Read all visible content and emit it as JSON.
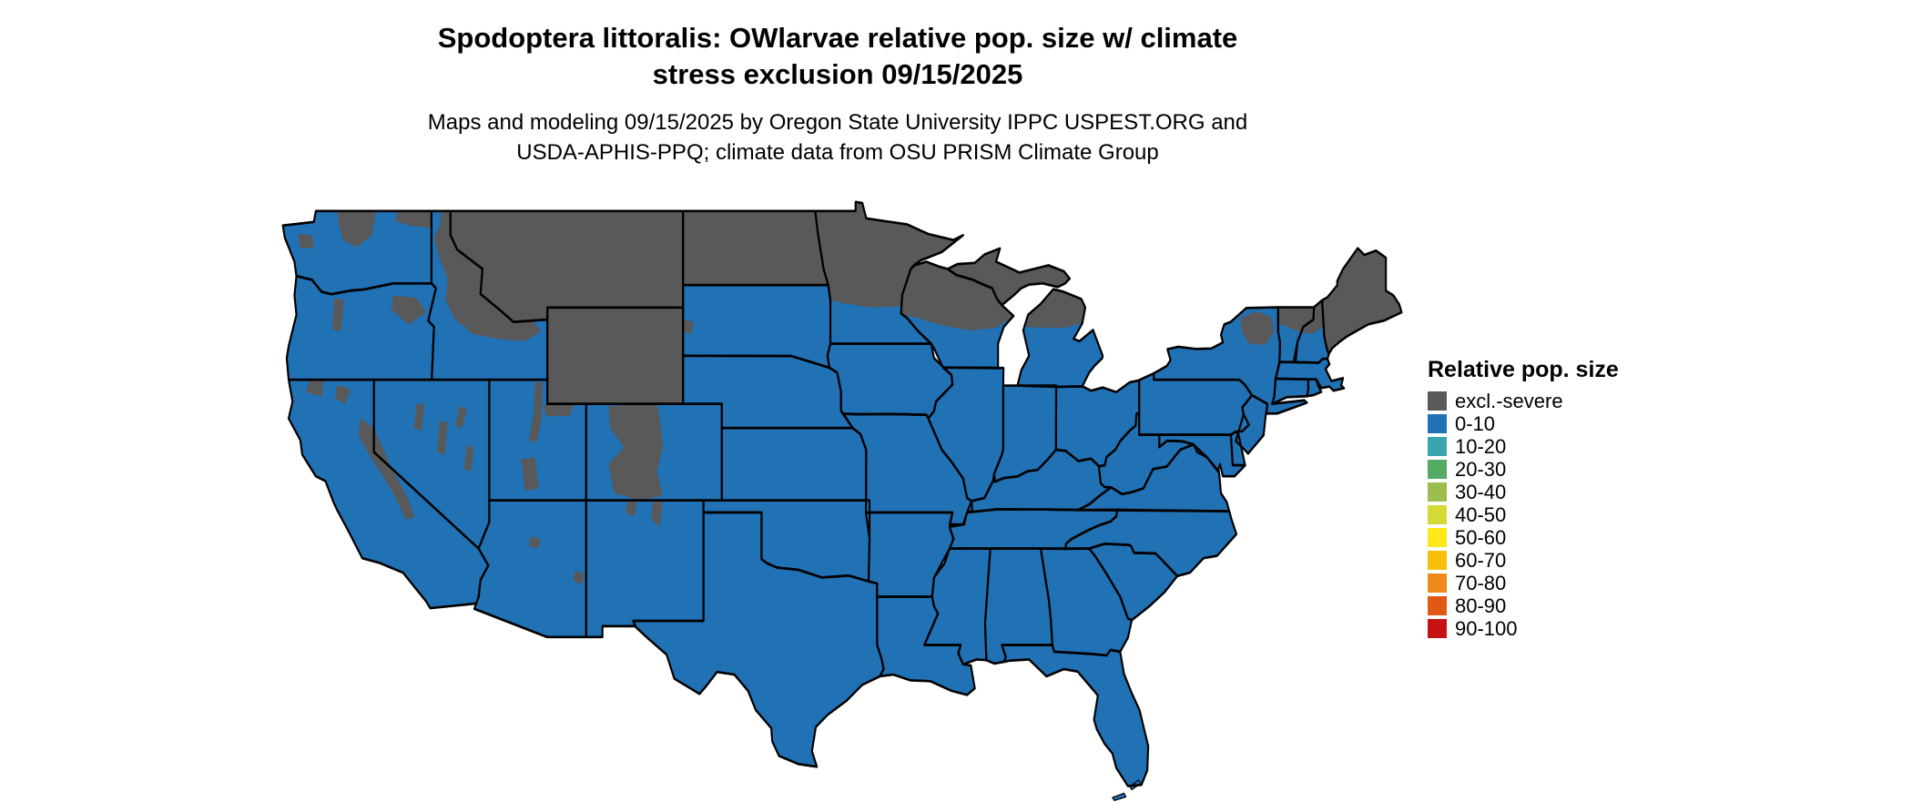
{
  "title": {
    "line1": "Spodoptera littoralis: OWlarvae relative pop. size w/ climate",
    "line2": "stress exclusion 09/15/2025"
  },
  "subtitle": {
    "line1": "Maps and modeling 09/15/2025 by Oregon State University IPPC USPEST.ORG and",
    "line2": "USDA-APHIS-PPQ; climate data from OSU PRISM Climate Group"
  },
  "legend": {
    "title": "Relative pop. size",
    "items": [
      {
        "label": "excl.-severe",
        "color": "#595959"
      },
      {
        "label": "0-10",
        "color": "#2171B5"
      },
      {
        "label": "10-20",
        "color": "#39A3AE"
      },
      {
        "label": "20-30",
        "color": "#55AB63"
      },
      {
        "label": "30-40",
        "color": "#9CBE4E"
      },
      {
        "label": "40-50",
        "color": "#D4DB34"
      },
      {
        "label": "50-60",
        "color": "#FFE81A"
      },
      {
        "label": "60-70",
        "color": "#F7BF0A"
      },
      {
        "label": "70-80",
        "color": "#F08A1D"
      },
      {
        "label": "80-90",
        "color": "#E05A15"
      },
      {
        "label": "90-100",
        "color": "#C81212"
      }
    ]
  },
  "map": {
    "region": "Continental United States",
    "colors": {
      "excluded": "#595959",
      "value_0_10": "#2171B5",
      "border": "#000000",
      "background": "#FFFFFF"
    },
    "excluded_state_codes": [
      "MT",
      "ND",
      "WY",
      "ME",
      "MIUP"
    ],
    "excluded_full_areas": [
      "Montana",
      "North Dakota",
      "Wyoming",
      "Maine",
      "Michigan Upper Peninsula"
    ],
    "excluded_partial_areas": [
      "northern Minnesota",
      "northern Wisconsin",
      "northern lower Michigan",
      "Adirondacks NY",
      "northern Vermont and New Hampshire",
      "North Cascades and NE Washington",
      "Olympic Mountains",
      "central Idaho",
      "Blue Mountains OR",
      "Oregon Cascades",
      "Sierra Nevada CA",
      "Klamath CA",
      "central Nevada ranges",
      "Uinta and Wasatch UT",
      "Colorado Rockies",
      "northern New Mexico",
      "Arizona highlands",
      "Black Hills SD"
    ],
    "all_other_area_value": "0-10"
  }
}
